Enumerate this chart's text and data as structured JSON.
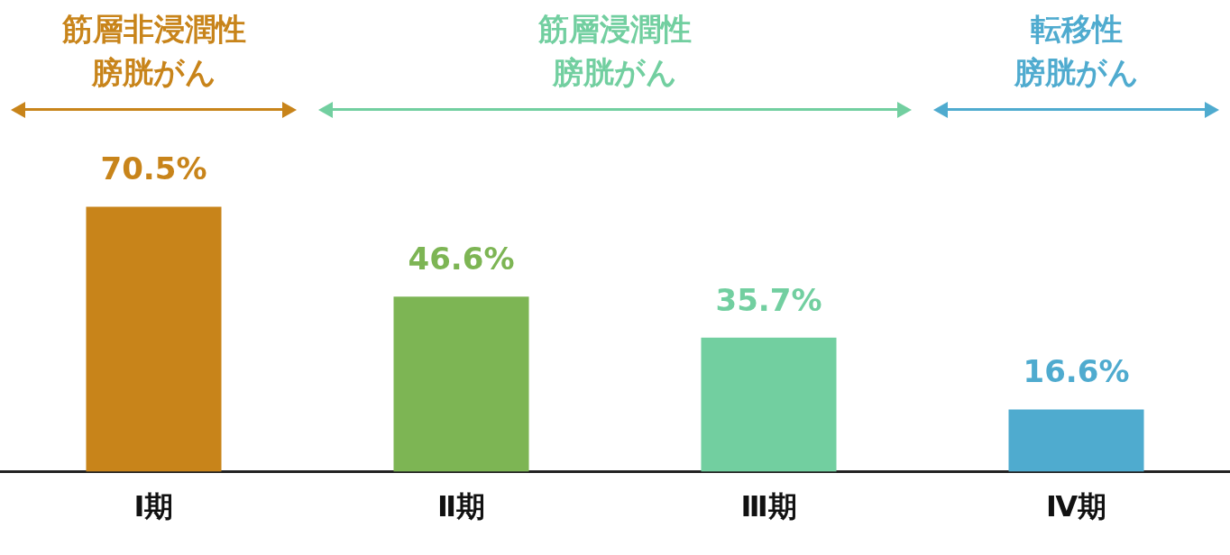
{
  "chart_data": {
    "type": "bar",
    "categories": [
      "Ⅰ期",
      "Ⅱ期",
      "Ⅲ期",
      "Ⅳ期"
    ],
    "values": [
      70.5,
      46.6,
      35.7,
      16.6
    ],
    "colors": [
      "#c8841a",
      "#7db554",
      "#72cfa0",
      "#4fabcf"
    ],
    "value_labels": [
      "70.5%",
      "46.6%",
      "35.7%",
      "16.6%"
    ],
    "grid": false,
    "legend": false,
    "annotations": [
      "筋層非浸潤性膀胱がん",
      "筋層浸潤性膀胱がん",
      "転移性膀胱がん"
    ]
  }
}
